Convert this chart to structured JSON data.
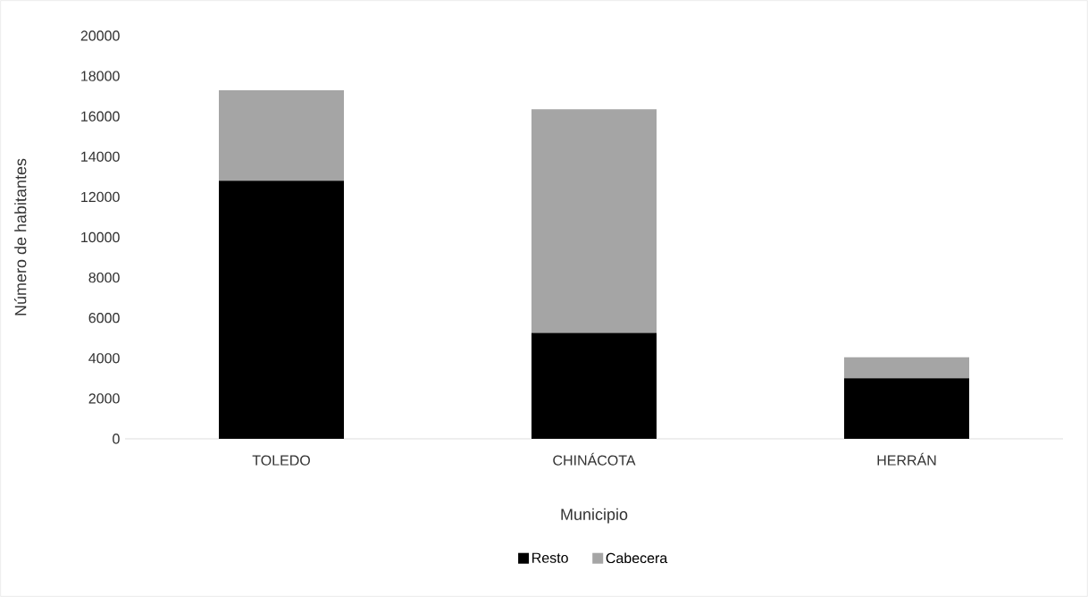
{
  "chart_data": {
    "type": "bar",
    "stacked": true,
    "xlabel": "Municipio",
    "ylabel": "Número de habitantes",
    "categories": [
      "TOLEDO",
      "CHINÁCOTA",
      "HERRÁN"
    ],
    "series": [
      {
        "name": "Resto",
        "color": "#000000",
        "values": [
          12800,
          5250,
          3000
        ]
      },
      {
        "name": "Cabecera",
        "color": "#a5a5a5",
        "values": [
          4500,
          11100,
          1050
        ]
      }
    ],
    "ylim": [
      0,
      20000
    ],
    "yticks": [
      0,
      2000,
      4000,
      6000,
      8000,
      10000,
      12000,
      14000,
      16000,
      18000,
      20000
    ],
    "legend": "bottom"
  }
}
